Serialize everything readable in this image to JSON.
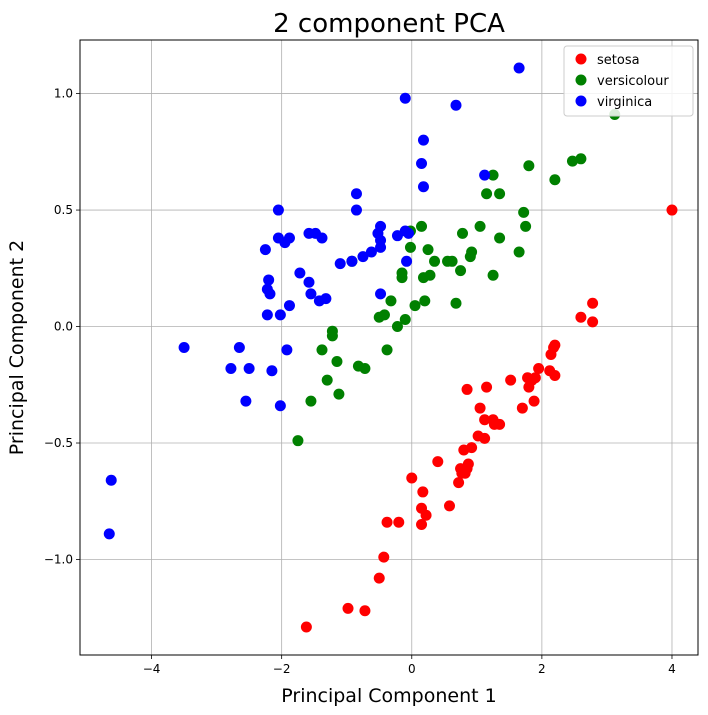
{
  "chart_data": {
    "type": "scatter",
    "title": "2 component PCA",
    "xlabel": "Principal Component 1",
    "ylabel": "Principal Component 2",
    "xlim": [
      -5.1,
      4.4
    ],
    "ylim": [
      -1.41,
      1.23
    ],
    "xticks": [
      -4,
      -2,
      0,
      2,
      4
    ],
    "xtick_labels": [
      "−4",
      "−2",
      "0",
      "2",
      "4"
    ],
    "yticks": [
      -1.0,
      -0.5,
      0.0,
      0.5,
      1.0
    ],
    "ytick_labels": [
      "−1.0",
      "−0.5",
      "0.0",
      "0.5",
      "1.0"
    ],
    "grid": true,
    "legend_position": "top-right",
    "series": [
      {
        "name": "setosa",
        "color": "#ff0000",
        "points": [
          [
            4.0,
            0.5
          ],
          [
            2.78,
            0.1
          ],
          [
            2.6,
            0.04
          ],
          [
            2.78,
            0.02
          ],
          [
            2.2,
            -0.08
          ],
          [
            2.18,
            -0.09
          ],
          [
            2.14,
            -0.12
          ],
          [
            2.12,
            -0.19
          ],
          [
            2.2,
            -0.21
          ],
          [
            1.95,
            -0.18
          ],
          [
            1.9,
            -0.22
          ],
          [
            1.85,
            -0.23
          ],
          [
            1.78,
            -0.22
          ],
          [
            1.8,
            -0.26
          ],
          [
            1.52,
            -0.23
          ],
          [
            1.88,
            -0.32
          ],
          [
            1.7,
            -0.35
          ],
          [
            1.15,
            -0.26
          ],
          [
            0.85,
            -0.27
          ],
          [
            1.05,
            -0.35
          ],
          [
            1.12,
            -0.4
          ],
          [
            1.25,
            -0.4
          ],
          [
            1.35,
            -0.42
          ],
          [
            1.27,
            -0.42
          ],
          [
            1.12,
            -0.48
          ],
          [
            1.02,
            -0.47
          ],
          [
            0.92,
            -0.52
          ],
          [
            0.8,
            -0.53
          ],
          [
            0.85,
            -0.61
          ],
          [
            0.75,
            -0.61
          ],
          [
            0.87,
            -0.59
          ],
          [
            0.82,
            -0.63
          ],
          [
            0.77,
            -0.63
          ],
          [
            0.72,
            -0.67
          ],
          [
            0.4,
            -0.58
          ],
          [
            0.0,
            -0.65
          ],
          [
            0.17,
            -0.71
          ],
          [
            0.15,
            -0.78
          ],
          [
            0.22,
            -0.81
          ],
          [
            0.15,
            -0.85
          ],
          [
            0.58,
            -0.77
          ],
          [
            -0.2,
            -0.84
          ],
          [
            -0.38,
            -0.84
          ],
          [
            -0.43,
            -0.99
          ],
          [
            -0.5,
            -1.08
          ],
          [
            -0.98,
            -1.21
          ],
          [
            -0.72,
            -1.22
          ],
          [
            -1.62,
            -1.29
          ]
        ]
      },
      {
        "name": "versicolour",
        "color": "#008000",
        "points": [
          [
            3.12,
            0.91
          ],
          [
            2.6,
            0.72
          ],
          [
            2.47,
            0.71
          ],
          [
            2.2,
            0.63
          ],
          [
            1.8,
            0.69
          ],
          [
            1.72,
            0.49
          ],
          [
            1.75,
            0.43
          ],
          [
            1.65,
            0.32
          ],
          [
            1.35,
            0.57
          ],
          [
            1.15,
            0.57
          ],
          [
            1.35,
            0.38
          ],
          [
            1.05,
            0.43
          ],
          [
            1.25,
            0.65
          ],
          [
            0.9,
            0.3
          ],
          [
            0.92,
            0.32
          ],
          [
            0.78,
            0.4
          ],
          [
            0.55,
            0.28
          ],
          [
            0.62,
            0.28
          ],
          [
            0.75,
            0.24
          ],
          [
            0.68,
            0.1
          ],
          [
            0.35,
            0.28
          ],
          [
            0.28,
            0.22
          ],
          [
            0.25,
            0.33
          ],
          [
            0.18,
            0.21
          ],
          [
            0.2,
            0.11
          ],
          [
            0.15,
            0.43
          ],
          [
            0.05,
            0.09
          ],
          [
            -0.02,
            0.34
          ],
          [
            -0.02,
            0.41
          ],
          [
            -0.15,
            0.21
          ],
          [
            -0.15,
            0.23
          ],
          [
            -0.1,
            0.03
          ],
          [
            -0.22,
            0.0
          ],
          [
            -0.32,
            0.11
          ],
          [
            -0.42,
            0.05
          ],
          [
            -0.5,
            0.04
          ],
          [
            -0.38,
            -0.1
          ],
          [
            -0.72,
            -0.18
          ],
          [
            -0.82,
            -0.17
          ],
          [
            -0.92,
            0.28
          ],
          [
            -1.22,
            -0.02
          ],
          [
            -1.22,
            -0.04
          ],
          [
            -1.38,
            -0.1
          ],
          [
            -1.15,
            -0.15
          ],
          [
            -1.3,
            -0.23
          ],
          [
            -1.12,
            -0.29
          ],
          [
            -1.55,
            -0.32
          ],
          [
            -1.75,
            -0.49
          ],
          [
            1.25,
            0.22
          ]
        ]
      },
      {
        "name": "virginica",
        "color": "#0000ff",
        "points": [
          [
            1.65,
            1.11
          ],
          [
            -0.1,
            0.98
          ],
          [
            0.68,
            0.95
          ],
          [
            0.18,
            0.8
          ],
          [
            0.15,
            0.7
          ],
          [
            0.18,
            0.6
          ],
          [
            1.12,
            0.65
          ],
          [
            -0.85,
            0.57
          ],
          [
            -2.05,
            0.5
          ],
          [
            -0.85,
            0.5
          ],
          [
            -0.48,
            0.43
          ],
          [
            -0.52,
            0.4
          ],
          [
            -0.48,
            0.37
          ],
          [
            -0.48,
            0.34
          ],
          [
            -0.62,
            0.32
          ],
          [
            -0.75,
            0.3
          ],
          [
            -0.92,
            0.28
          ],
          [
            -1.1,
            0.27
          ],
          [
            -0.05,
            0.4
          ],
          [
            -0.1,
            0.41
          ],
          [
            -0.22,
            0.39
          ],
          [
            -0.08,
            0.28
          ],
          [
            -1.38,
            0.38
          ],
          [
            -1.48,
            0.4
          ],
          [
            -1.58,
            0.4
          ],
          [
            -1.88,
            0.38
          ],
          [
            -1.95,
            0.36
          ],
          [
            -2.05,
            0.38
          ],
          [
            -2.25,
            0.33
          ],
          [
            -1.72,
            0.23
          ],
          [
            -1.58,
            0.19
          ],
          [
            -2.2,
            0.2
          ],
          [
            -2.22,
            0.16
          ],
          [
            -2.18,
            0.14
          ],
          [
            -1.55,
            0.14
          ],
          [
            -1.42,
            0.11
          ],
          [
            -1.32,
            0.12
          ],
          [
            -0.48,
            0.14
          ],
          [
            -1.88,
            0.09
          ],
          [
            -2.22,
            0.05
          ],
          [
            -2.02,
            0.05
          ],
          [
            -1.92,
            -0.1
          ],
          [
            -3.5,
            -0.09
          ],
          [
            -2.65,
            -0.09
          ],
          [
            -2.5,
            -0.18
          ],
          [
            -2.78,
            -0.18
          ],
          [
            -2.15,
            -0.19
          ],
          [
            -2.55,
            -0.32
          ],
          [
            -2.02,
            -0.34
          ],
          [
            -4.62,
            -0.66
          ],
          [
            -4.65,
            -0.89
          ]
        ]
      }
    ]
  }
}
